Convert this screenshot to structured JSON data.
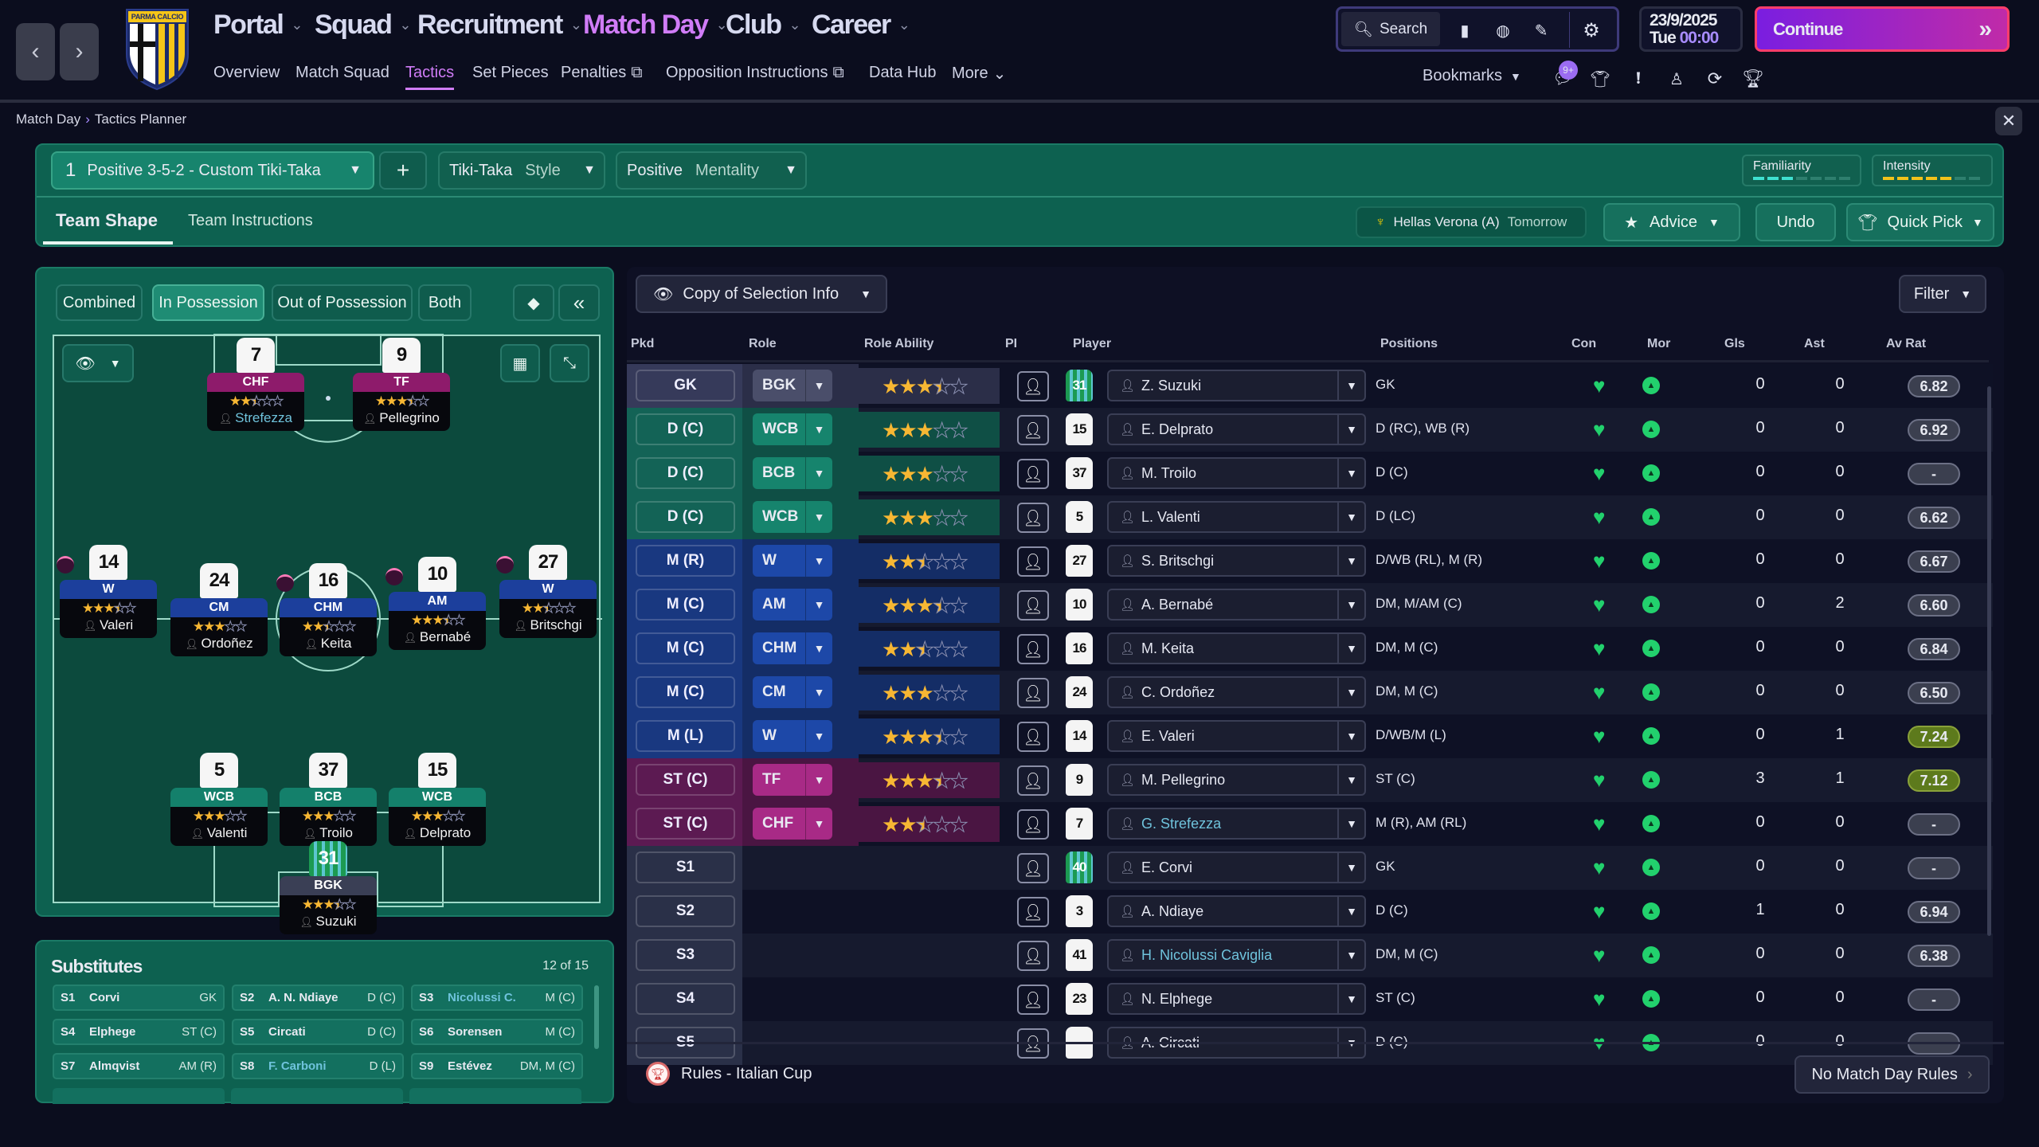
{
  "topnav": {
    "back_icon": "chevron-left-icon",
    "forward_icon": "chevron-right-icon",
    "club_logo_text": "PARMA CALCIO",
    "main": [
      "Portal",
      "Squad",
      "Recruitment",
      "Match Day",
      "Club",
      "Career"
    ],
    "active_main": "Match Day",
    "sub": [
      "Overview",
      "Match Squad",
      "Tactics",
      "Set Pieces",
      "Penalties",
      "Opposition Instructions",
      "Data Hub",
      "More"
    ],
    "active_sub": "Tactics",
    "search_label": "Search",
    "date": "23/9/2025",
    "day": "Tue",
    "time": "00:00",
    "continue_label": "Continue",
    "bookmarks_label": "Bookmarks",
    "inbox_badge": "9+",
    "accent_color": "#d07cf7"
  },
  "breadcrumb": [
    "Match Day",
    "Tactics Planner"
  ],
  "tactic_header": {
    "slot_number": "1",
    "formation": "Positive 3-5-2 - Custom Tiki-Taka",
    "style_value": "Tiki-Taka",
    "style_label": "Style",
    "mentality_value": "Positive",
    "mentality_label": "Mentality",
    "familiarity_label": "Familiarity",
    "familiarity_level": 3,
    "intensity_label": "Intensity",
    "intensity_level": 5,
    "level_max": 7,
    "tabs": [
      "Team Shape",
      "Team Instructions"
    ],
    "active_tab": "Team Shape",
    "next_match": "Hellas Verona (A)",
    "next_match_when": "Tomorrow",
    "advice_label": "Advice",
    "undo_label": "Undo",
    "quick_pick_label": "Quick Pick"
  },
  "pitch": {
    "modes": [
      "Combined",
      "In Possession",
      "Out of Possession",
      "Both"
    ],
    "active_mode": "In Possession",
    "players": [
      {
        "role": "CHF",
        "number": "7",
        "name": "Strefezza",
        "stars": 2.5,
        "line": "att",
        "highlight": true
      },
      {
        "role": "TF",
        "number": "9",
        "name": "Pellegrino",
        "stars": 3.5,
        "line": "att"
      },
      {
        "role": "W",
        "number": "14",
        "name": "Valeri",
        "stars": 3.5,
        "line": "mid",
        "badge": true
      },
      {
        "role": "CM",
        "number": "24",
        "name": "Ordoñez",
        "stars": 3,
        "line": "mid"
      },
      {
        "role": "CHM",
        "number": "16",
        "name": "Keita",
        "stars": 2.5,
        "line": "mid",
        "badge": true
      },
      {
        "role": "AM",
        "number": "10",
        "name": "Bernabé",
        "stars": 3.5,
        "line": "mid",
        "badge": true
      },
      {
        "role": "W",
        "number": "27",
        "name": "Britschgi",
        "stars": 2.5,
        "line": "mid",
        "badge": true
      },
      {
        "role": "WCB",
        "number": "5",
        "name": "Valenti",
        "stars": 3,
        "line": "def"
      },
      {
        "role": "BCB",
        "number": "37",
        "name": "Troilo",
        "stars": 3,
        "line": "def"
      },
      {
        "role": "WCB",
        "number": "15",
        "name": "Delprato",
        "stars": 3,
        "line": "def"
      },
      {
        "role": "BGK",
        "number": "31",
        "name": "Suzuki",
        "stars": 3.5,
        "line": "gk"
      }
    ]
  },
  "substitutes": {
    "title": "Substitutes",
    "count": "12 of 15",
    "items": [
      {
        "slot": "S1",
        "name": "Corvi",
        "pos": "GK"
      },
      {
        "slot": "S2",
        "name": "A. N. Ndiaye",
        "pos": "D (C)"
      },
      {
        "slot": "S3",
        "name": "Nicolussi C.",
        "pos": "M (C)",
        "highlight": true
      },
      {
        "slot": "S4",
        "name": "Elphege",
        "pos": "ST (C)"
      },
      {
        "slot": "S5",
        "name": "Circati",
        "pos": "D (C)"
      },
      {
        "slot": "S6",
        "name": "Sorensen",
        "pos": "M (C)"
      },
      {
        "slot": "S7",
        "name": "Almqvist",
        "pos": "AM (R)"
      },
      {
        "slot": "S8",
        "name": "F. Carboni",
        "pos": "D (L)",
        "highlight": true
      },
      {
        "slot": "S9",
        "name": "Estévez",
        "pos": "DM, M (C)"
      }
    ]
  },
  "selection": {
    "view_label": "Copy of Selection Info",
    "filter_label": "Filter",
    "columns": [
      "Pkd",
      "Role",
      "Role Ability",
      "PI",
      "Player",
      "Positions",
      "Con",
      "Mor",
      "Gls",
      "Ast",
      "Av Rat"
    ],
    "rows": [
      {
        "pkd": "GK",
        "role": "BGK",
        "stars": 3.5,
        "line": "gk",
        "number": "31",
        "gk_kit": true,
        "player": "Z. Suzuki",
        "positions": "GK",
        "gls": "0",
        "ast": "0",
        "rating": "6.82"
      },
      {
        "pkd": "D (C)",
        "role": "WCB",
        "stars": 3,
        "line": "def",
        "number": "15",
        "player": "E. Delprato",
        "positions": "D (RC), WB (R)",
        "gls": "0",
        "ast": "0",
        "rating": "6.92"
      },
      {
        "pkd": "D (C)",
        "role": "BCB",
        "stars": 3,
        "line": "def",
        "number": "37",
        "player": "M. Troilo",
        "positions": "D (C)",
        "gls": "0",
        "ast": "0",
        "rating": "-"
      },
      {
        "pkd": "D (C)",
        "role": "WCB",
        "stars": 3,
        "line": "def",
        "number": "5",
        "player": "L. Valenti",
        "positions": "D (LC)",
        "gls": "0",
        "ast": "0",
        "rating": "6.62"
      },
      {
        "pkd": "M (R)",
        "role": "W",
        "stars": 2.5,
        "line": "mid",
        "number": "27",
        "player": "S. Britschgi",
        "positions": "D/WB (RL), M (R)",
        "gls": "0",
        "ast": "0",
        "rating": "6.67"
      },
      {
        "pkd": "M (C)",
        "role": "AM",
        "stars": 3.5,
        "line": "mid",
        "number": "10",
        "player": "A. Bernabé",
        "positions": "DM, M/AM (C)",
        "gls": "0",
        "ast": "2",
        "rating": "6.60"
      },
      {
        "pkd": "M (C)",
        "role": "CHM",
        "stars": 2.5,
        "line": "mid",
        "number": "16",
        "player": "M. Keita",
        "positions": "DM, M (C)",
        "gls": "0",
        "ast": "0",
        "rating": "6.84"
      },
      {
        "pkd": "M (C)",
        "role": "CM",
        "stars": 3,
        "line": "mid",
        "number": "24",
        "player": "C. Ordoñez",
        "positions": "DM, M (C)",
        "gls": "0",
        "ast": "0",
        "rating": "6.50"
      },
      {
        "pkd": "M (L)",
        "role": "W",
        "stars": 3.5,
        "line": "mid",
        "number": "14",
        "player": "E. Valeri",
        "positions": "D/WB/M (L)",
        "gls": "0",
        "ast": "1",
        "rating": "7.24",
        "good": true
      },
      {
        "pkd": "ST (C)",
        "role": "TF",
        "stars": 3.5,
        "line": "att",
        "number": "9",
        "player": "M. Pellegrino",
        "positions": "ST (C)",
        "gls": "3",
        "ast": "1",
        "rating": "7.12",
        "good": true
      },
      {
        "pkd": "ST (C)",
        "role": "CHF",
        "stars": 2.5,
        "line": "att",
        "number": "7",
        "player": "G. Strefezza",
        "highlight": true,
        "positions": "M (R), AM (RL)",
        "gls": "0",
        "ast": "0",
        "rating": "-"
      },
      {
        "pkd": "S1",
        "line": "sub",
        "number": "40",
        "gk_kit": true,
        "player": "E. Corvi",
        "positions": "GK",
        "gls": "0",
        "ast": "0",
        "rating": "-"
      },
      {
        "pkd": "S2",
        "line": "sub",
        "number": "3",
        "player": "A. Ndiaye",
        "positions": "D (C)",
        "gls": "1",
        "ast": "0",
        "rating": "6.94"
      },
      {
        "pkd": "S3",
        "line": "sub",
        "number": "41",
        "player": "H. Nicolussi Caviglia",
        "highlight": true,
        "positions": "DM, M (C)",
        "gls": "0",
        "ast": "0",
        "rating": "6.38"
      },
      {
        "pkd": "S4",
        "line": "sub",
        "number": "23",
        "player": "N. Elphege",
        "positions": "ST (C)",
        "gls": "0",
        "ast": "0",
        "rating": "-"
      },
      {
        "pkd": "S5",
        "line": "sub",
        "number": "",
        "player": "A. Circati",
        "positions": "D (C)",
        "gls": "0",
        "ast": "0",
        "rating": ""
      }
    ],
    "competition_rules": "Rules - Italian Cup",
    "match_day_rules_label": "No Match Day Rules"
  },
  "colors": {
    "gk": "#2b2e48",
    "def": "#0f4f45",
    "mid": "#142d66",
    "att": "#4a1542",
    "sub": "#22263a"
  }
}
